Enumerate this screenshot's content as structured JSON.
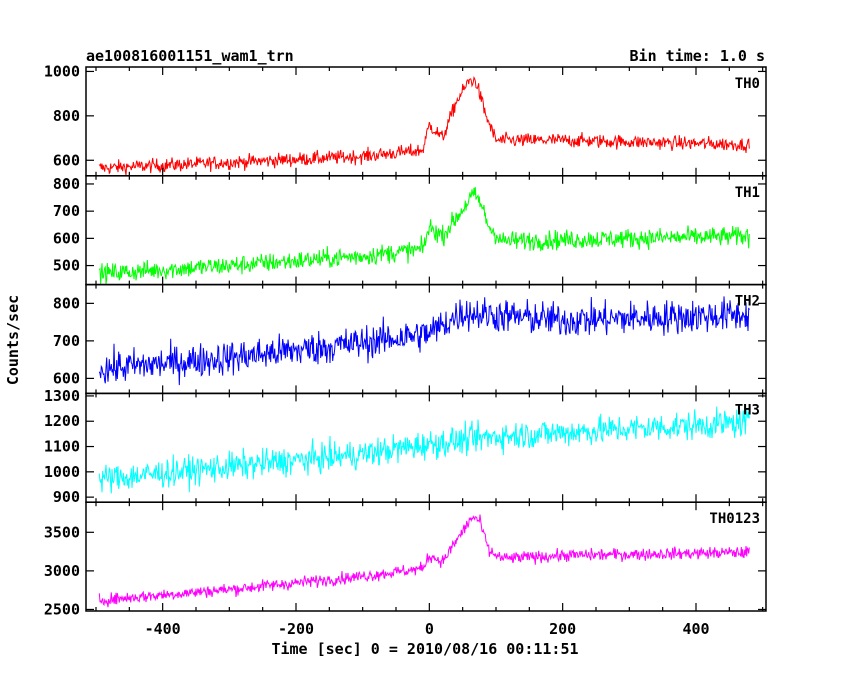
{
  "header": {
    "left_title": "ae100816001151_wam1_trn",
    "right_title": "Bin time: 1.0 s"
  },
  "axes": {
    "xlabel": "Time [sec] 0 = 2010/08/16 00:11:51",
    "ylabel": "Counts/sec"
  },
  "chart_data": {
    "type": "line",
    "title": "ae100816001151_wam1_trn",
    "subtitle": "Bin time: 1.0 s",
    "xlabel": "Time [sec] 0 = 2010/08/16 00:11:51",
    "ylabel": "Counts/sec",
    "xlim": [
      -515,
      505
    ],
    "x_ticks": [
      -400,
      -200,
      0,
      200,
      400
    ],
    "x_start": -495,
    "x_end": 480,
    "x_step": 1,
    "grid": false,
    "panels": [
      {
        "name": "TH0",
        "color": "#ff0000",
        "ylim": [
          530,
          1020
        ],
        "y_ticks": [
          600,
          800,
          1000
        ],
        "trend": [
          [
            -495,
            565
          ],
          [
            -300,
            590
          ],
          [
            -100,
            618
          ],
          [
            -10,
            645
          ],
          [
            0,
            760
          ],
          [
            20,
            700
          ],
          [
            40,
            860
          ],
          [
            60,
            960
          ],
          [
            70,
            955
          ],
          [
            85,
            800
          ],
          [
            100,
            690
          ],
          [
            200,
            690
          ],
          [
            480,
            670
          ]
        ],
        "noise": 22
      },
      {
        "name": "TH1",
        "color": "#00ff00",
        "ylim": [
          430,
          830
        ],
        "y_ticks": [
          500,
          600,
          700,
          800
        ],
        "trend": [
          [
            -495,
            470
          ],
          [
            -300,
            500
          ],
          [
            -100,
            535
          ],
          [
            -10,
            560
          ],
          [
            0,
            640
          ],
          [
            20,
            610
          ],
          [
            45,
            690
          ],
          [
            65,
            760
          ],
          [
            75,
            740
          ],
          [
            90,
            640
          ],
          [
            110,
            590
          ],
          [
            300,
            600
          ],
          [
            480,
            608
          ]
        ],
        "noise": 25
      },
      {
        "name": "TH2",
        "color": "#0000ff",
        "ylim": [
          560,
          850
        ],
        "y_ticks": [
          600,
          700,
          800
        ],
        "trend": [
          [
            -495,
            625
          ],
          [
            -300,
            655
          ],
          [
            -100,
            695
          ],
          [
            0,
            720
          ],
          [
            50,
            775
          ],
          [
            200,
            755
          ],
          [
            480,
            770
          ]
        ],
        "noise": 32
      },
      {
        "name": "TH3",
        "color": "#00ffff",
        "ylim": [
          880,
          1310
        ],
        "y_ticks": [
          900,
          1000,
          1100,
          1200,
          1300
        ],
        "trend": [
          [
            -495,
            970
          ],
          [
            -300,
            1020
          ],
          [
            -100,
            1070
          ],
          [
            0,
            1110
          ],
          [
            100,
            1140
          ],
          [
            300,
            1170
          ],
          [
            480,
            1195
          ]
        ],
        "noise": 40
      },
      {
        "name": "TH0123",
        "color": "#ff00ff",
        "ylim": [
          2480,
          3890
        ],
        "y_ticks": [
          2500,
          3000,
          3500
        ],
        "trend": [
          [
            -495,
            2620
          ],
          [
            -300,
            2760
          ],
          [
            -100,
            2930
          ],
          [
            -10,
            3030
          ],
          [
            0,
            3200
          ],
          [
            20,
            3120
          ],
          [
            45,
            3450
          ],
          [
            65,
            3700
          ],
          [
            75,
            3650
          ],
          [
            90,
            3250
          ],
          [
            110,
            3160
          ],
          [
            200,
            3200
          ],
          [
            480,
            3240
          ]
        ],
        "noise": 55
      }
    ]
  }
}
